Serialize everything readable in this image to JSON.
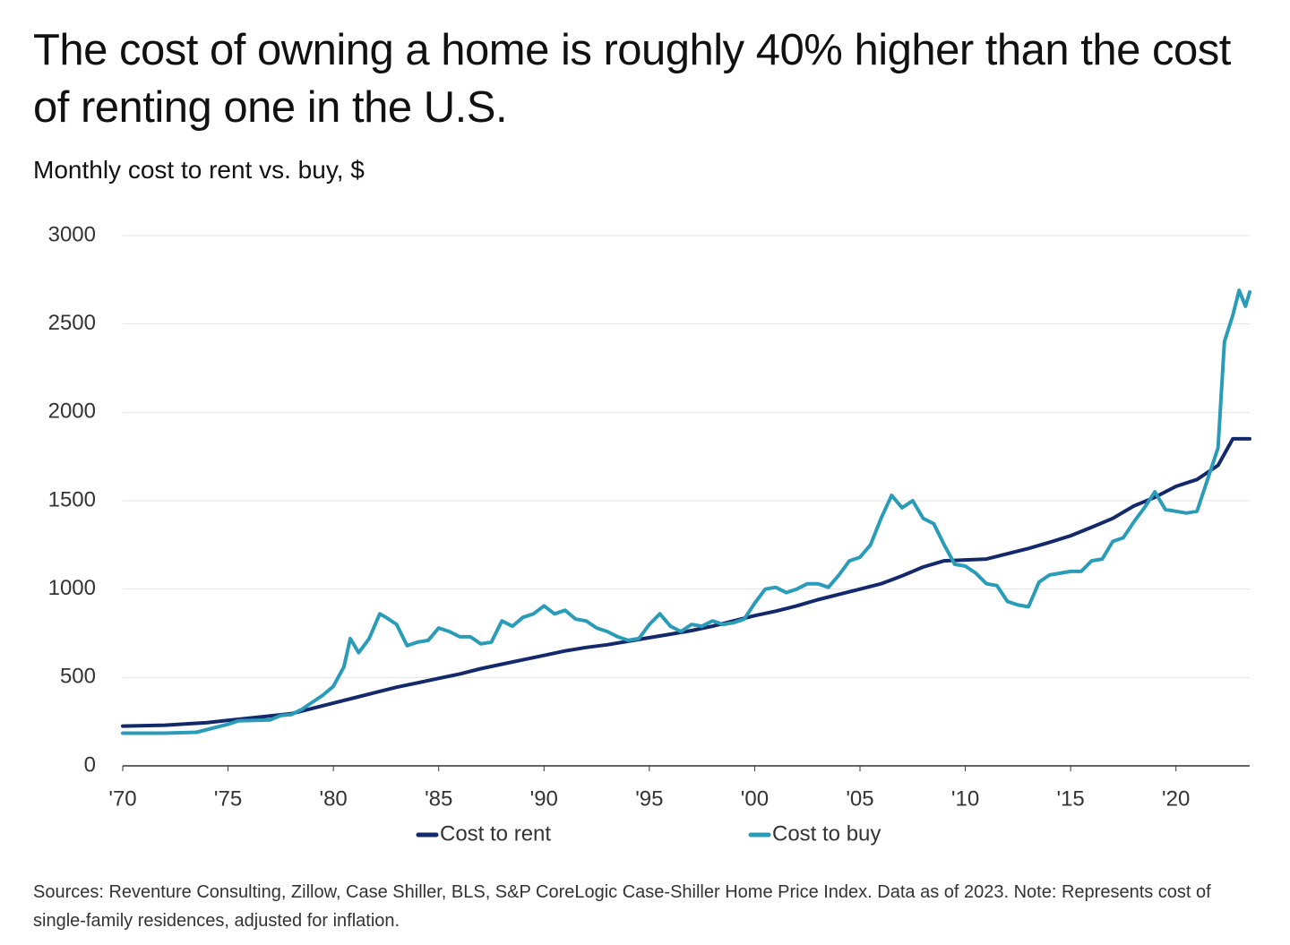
{
  "chart_data": {
    "type": "line",
    "title": "The cost of owning a home is roughly 40% higher than the cost of renting one in the U.S.",
    "subtitle": "Monthly cost to rent vs. buy, $",
    "note": "Sources: Reventure Consulting, Zillow, Case Shiller, BLS, S&P CoreLogic Case-Shiller Home Price Index. Data as of 2023. Note: Represents cost of single-family residences, adjusted for inflation.",
    "xlim": [
      1970,
      2023.5
    ],
    "xticks": [
      {
        "value": 1970,
        "label": "'70"
      },
      {
        "value": 1975,
        "label": "'75"
      },
      {
        "value": 1980,
        "label": "'80"
      },
      {
        "value": 1985,
        "label": "'85"
      },
      {
        "value": 1990,
        "label": "'90"
      },
      {
        "value": 1995,
        "label": "'95"
      },
      {
        "value": 2000,
        "label": "'00"
      },
      {
        "value": 2005,
        "label": "'05"
      },
      {
        "value": 2010,
        "label": "'10"
      },
      {
        "value": 2015,
        "label": "'15"
      },
      {
        "value": 2020,
        "label": "'20"
      }
    ],
    "ylim": [
      0,
      3000
    ],
    "yticks": [
      0,
      500,
      1000,
      1500,
      2000,
      2500,
      3000
    ],
    "grid": true,
    "legend": "bottom",
    "series": [
      {
        "name": "Cost to rent",
        "color": "#14296b",
        "x": [
          1970,
          1972,
          1974,
          1976,
          1978,
          1980,
          1981,
          1982,
          1983,
          1984,
          1985,
          1986,
          1987,
          1988,
          1989,
          1990,
          1991,
          1992,
          1993,
          1994,
          1995,
          1996,
          1997,
          1998,
          1999,
          2000,
          2001,
          2002,
          2003,
          2004,
          2005,
          2006,
          2007,
          2008,
          2009,
          2010,
          2011,
          2012,
          2013,
          2014,
          2015,
          2016,
          2017,
          2018,
          2019,
          2020,
          2021,
          2022,
          2022.7,
          2023.5
        ],
        "values": [
          225,
          230,
          245,
          270,
          295,
          355,
          385,
          415,
          445,
          470,
          495,
          520,
          550,
          575,
          600,
          625,
          650,
          670,
          685,
          705,
          725,
          745,
          765,
          790,
          820,
          850,
          875,
          905,
          940,
          970,
          1000,
          1030,
          1075,
          1125,
          1160,
          1165,
          1170,
          1200,
          1230,
          1265,
          1302,
          1350,
          1400,
          1470,
          1520,
          1581,
          1620,
          1700,
          1850,
          1850
        ]
      },
      {
        "name": "Cost to buy",
        "color": "#2b9cb8",
        "x": [
          1970,
          1972,
          1973.5,
          1974,
          1975,
          1975.5,
          1977,
          1977.5,
          1978,
          1978.5,
          1979,
          1979.5,
          1980,
          1980.5,
          1980.8,
          1981.2,
          1981.7,
          1982.2,
          1982.5,
          1983,
          1983.5,
          1984,
          1984.5,
          1985,
          1985.5,
          1986,
          1986.5,
          1987,
          1987.5,
          1988,
          1988.5,
          1989,
          1989.5,
          1990,
          1990.5,
          1991,
          1991.5,
          1992,
          1992.5,
          1993,
          1993.5,
          1994,
          1994.5,
          1995,
          1995.5,
          1996,
          1996.5,
          1997,
          1997.5,
          1998,
          1998.5,
          1999,
          1999.5,
          2000,
          2000.5,
          2001,
          2001.5,
          2002,
          2002.5,
          2003,
          2003.5,
          2004,
          2004.5,
          2005,
          2005.5,
          2006,
          2006.5,
          2007,
          2007.5,
          2008,
          2008.5,
          2009,
          2009.5,
          2010,
          2010.5,
          2011,
          2011.5,
          2012,
          2012.5,
          2013,
          2013.5,
          2014,
          2014.5,
          2015,
          2015.5,
          2016,
          2016.5,
          2017,
          2017.5,
          2018,
          2018.5,
          2019,
          2019.5,
          2020,
          2020.5,
          2021,
          2021.5,
          2022,
          2022.3,
          2022.7,
          2023,
          2023.3,
          2023.5
        ],
        "values": [
          185,
          185,
          190,
          205,
          235,
          255,
          260,
          285,
          290,
          320,
          360,
          400,
          450,
          560,
          720,
          640,
          720,
          860,
          840,
          800,
          680,
          700,
          710,
          780,
          760,
          730,
          730,
          690,
          700,
          820,
          790,
          840,
          860,
          905,
          860,
          880,
          830,
          820,
          780,
          760,
          730,
          710,
          720,
          800,
          860,
          790,
          760,
          800,
          790,
          820,
          800,
          810,
          830,
          920,
          1000,
          1010,
          980,
          1000,
          1030,
          1030,
          1010,
          1080,
          1160,
          1180,
          1250,
          1400,
          1530,
          1460,
          1500,
          1400,
          1370,
          1250,
          1140,
          1130,
          1090,
          1030,
          1020,
          930,
          910,
          900,
          1040,
          1080,
          1090,
          1100,
          1100,
          1160,
          1170,
          1270,
          1290,
          1380,
          1460,
          1550,
          1450,
          1440,
          1430,
          1440,
          1620,
          1800,
          2400,
          2550,
          2690,
          2600,
          2680
        ]
      }
    ]
  }
}
